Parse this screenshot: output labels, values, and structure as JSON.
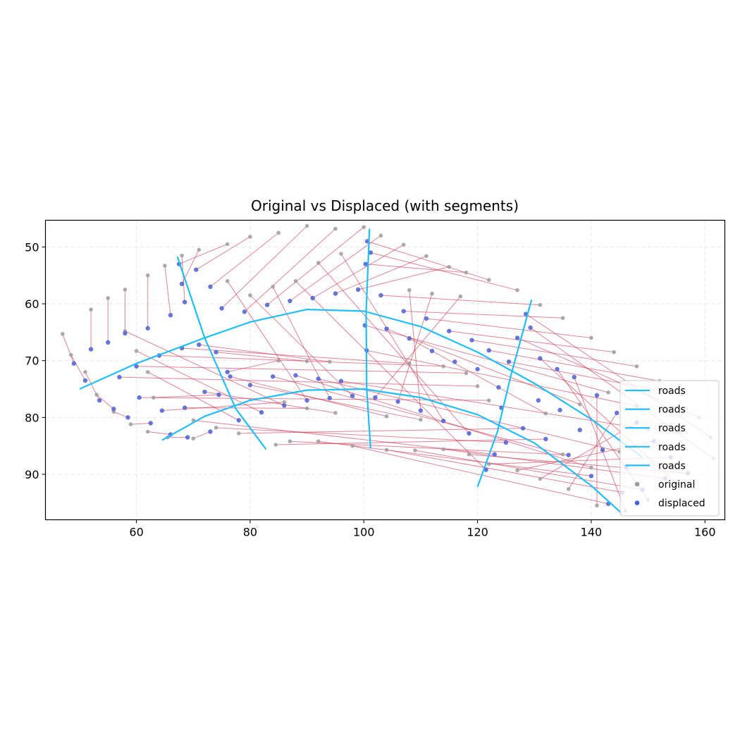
{
  "chart_data": {
    "type": "scatter",
    "title": "Original vs Displaced (with segments)",
    "xlabel": "",
    "ylabel": "",
    "xlim": [
      44,
      163.5
    ],
    "ylim": [
      98,
      45.3
    ],
    "y_axis_inverted": true,
    "x_ticks": [
      "60",
      "80",
      "100",
      "120",
      "140",
      "160"
    ],
    "y_ticks": [
      "50",
      "60",
      "70",
      "80",
      "90"
    ],
    "grid": true,
    "grid_style": "dashed",
    "legend_position": "lower right",
    "legend": [
      {
        "label": "roads",
        "kind": "line",
        "color": "#1fbfff"
      },
      {
        "label": "roads",
        "kind": "line",
        "color": "#1fbfff"
      },
      {
        "label": "roads",
        "kind": "line",
        "color": "#1fbfff"
      },
      {
        "label": "roads",
        "kind": "line",
        "color": "#1fbfff"
      },
      {
        "label": "roads",
        "kind": "line",
        "color": "#1fbfff"
      },
      {
        "label": "original",
        "kind": "marker",
        "color": "#9e9e9e"
      },
      {
        "label": "displaced",
        "kind": "marker",
        "color": "#4a5fd6"
      }
    ],
    "colors": {
      "roads": "#1fbfff",
      "original": "#9e9e9e",
      "displaced": "#4a5fd6",
      "segments": "#d6304f"
    },
    "roads": [
      {
        "points": [
          [
            50,
            75
          ],
          [
            60,
            70.5
          ],
          [
            72,
            66
          ],
          [
            80,
            63.2
          ],
          [
            90,
            61
          ],
          [
            100,
            61.3
          ],
          [
            110,
            64
          ],
          [
            120,
            68.5
          ],
          [
            130,
            74
          ],
          [
            140,
            80.3
          ],
          [
            149,
            87
          ]
        ]
      },
      {
        "points": [
          [
            64.5,
            84
          ],
          [
            72,
            79.8
          ],
          [
            80,
            77
          ],
          [
            90,
            75.2
          ],
          [
            100,
            75
          ],
          [
            110,
            76.5
          ],
          [
            120,
            79.5
          ],
          [
            130,
            84.5
          ],
          [
            140,
            92
          ],
          [
            145.5,
            97
          ]
        ]
      },
      {
        "points": [
          [
            67.2,
            51.7
          ],
          [
            72,
            66
          ],
          [
            77.5,
            78.5
          ],
          [
            82.8,
            85.6
          ]
        ]
      },
      {
        "points": [
          [
            101,
            46.8
          ],
          [
            100.4,
            61.5
          ],
          [
            100.5,
            75
          ],
          [
            101.2,
            85.5
          ]
        ]
      },
      {
        "points": [
          [
            129.5,
            59.3
          ],
          [
            125.9,
            72.5
          ],
          [
            123.5,
            82.5
          ],
          [
            120,
            92.2
          ]
        ]
      }
    ],
    "sample_points": {
      "original": [
        [
          47,
          65.3
        ],
        [
          48.5,
          69
        ],
        [
          51,
          72
        ],
        [
          53,
          76
        ],
        [
          56,
          79
        ],
        [
          59,
          81.2
        ],
        [
          62,
          82.5
        ],
        [
          65.5,
          83.5
        ],
        [
          70,
          83.7
        ],
        [
          52,
          61
        ],
        [
          55,
          59
        ],
        [
          58,
          57.5
        ],
        [
          62,
          55
        ],
        [
          65,
          53.3
        ],
        [
          68,
          51.5
        ],
        [
          71,
          50.5
        ],
        [
          76,
          49.5
        ],
        [
          80,
          48.2
        ],
        [
          85,
          47.5
        ],
        [
          90,
          46.3
        ],
        [
          95,
          46.8
        ],
        [
          100,
          46.5
        ],
        [
          103,
          48
        ],
        [
          107,
          49.6
        ],
        [
          111,
          51.6
        ],
        [
          115,
          53.5
        ],
        [
          118,
          54.5
        ],
        [
          122,
          55.8
        ],
        [
          127,
          57.6
        ],
        [
          131,
          60.2
        ],
        [
          135,
          62.5
        ],
        [
          140,
          66
        ],
        [
          144,
          68.5
        ],
        [
          148,
          71
        ],
        [
          152,
          73.6
        ],
        [
          156,
          76
        ],
        [
          159,
          80
        ],
        [
          161,
          83.5
        ],
        [
          161.5,
          87.2
        ],
        [
          155,
          91.6
        ],
        [
          150,
          94.5
        ],
        [
          146,
          96.4
        ],
        [
          141,
          95.5
        ],
        [
          136,
          92.6
        ],
        [
          131,
          90.8
        ],
        [
          127,
          89.3
        ],
        [
          122,
          88.2
        ],
        [
          118.5,
          86.5
        ],
        [
          114,
          85.6
        ],
        [
          109,
          85.8
        ],
        [
          104,
          85.7
        ],
        [
          98,
          85
        ],
        [
          92,
          84.2
        ],
        [
          87,
          84.2
        ],
        [
          84.5,
          84.8
        ],
        [
          78,
          82.8
        ],
        [
          74,
          81.8
        ],
        [
          70,
          80.5
        ],
        [
          88,
          56
        ],
        [
          92,
          52.8
        ],
        [
          96,
          51.2
        ],
        [
          108,
          57.6
        ],
        [
          112,
          58.2
        ],
        [
          117,
          58.7
        ],
        [
          80,
          58.5
        ],
        [
          84,
          57
        ],
        [
          76,
          56
        ],
        [
          58,
          64.8
        ],
        [
          60,
          68.3
        ],
        [
          62,
          72
        ],
        [
          63,
          76.5
        ],
        [
          85,
          70
        ],
        [
          90,
          70.1
        ],
        [
          94,
          70.2
        ],
        [
          108,
          70.5
        ],
        [
          114,
          71
        ],
        [
          118,
          72.2
        ],
        [
          120,
          74.5
        ],
        [
          122,
          77
        ],
        [
          86,
          77.3
        ],
        [
          90,
          78.4
        ],
        [
          95,
          79.2
        ],
        [
          104,
          79.8
        ],
        [
          110,
          80.4
        ],
        [
          135,
          86.5
        ],
        [
          140,
          88.8
        ],
        [
          145,
          86
        ],
        [
          150,
          82.1
        ],
        [
          148,
          78
        ],
        [
          143,
          75.6
        ],
        [
          138,
          77.7
        ],
        [
          132,
          79.3
        ]
      ],
      "displaced": [
        [
          49,
          70.5
        ],
        [
          51,
          73.5
        ],
        [
          53.5,
          77
        ],
        [
          56,
          78.5
        ],
        [
          58.5,
          80
        ],
        [
          62.5,
          81
        ],
        [
          66,
          83
        ],
        [
          69,
          83.5
        ],
        [
          73,
          82.5
        ],
        [
          52,
          68
        ],
        [
          55,
          66.8
        ],
        [
          58,
          65.2
        ],
        [
          62,
          64.3
        ],
        [
          66,
          62
        ],
        [
          68.5,
          59.7
        ],
        [
          68,
          56.5
        ],
        [
          67.5,
          53
        ],
        [
          70.5,
          54
        ],
        [
          73,
          57
        ],
        [
          75,
          60.8
        ],
        [
          79,
          61.4
        ],
        [
          83,
          60.2
        ],
        [
          87,
          59.5
        ],
        [
          91,
          59
        ],
        [
          95,
          58.2
        ],
        [
          99,
          57.5
        ],
        [
          100.3,
          53
        ],
        [
          100.6,
          49
        ],
        [
          101.2,
          51
        ],
        [
          103,
          58.5
        ],
        [
          107,
          61.3
        ],
        [
          111,
          62.6
        ],
        [
          115,
          64.8
        ],
        [
          119,
          66.4
        ],
        [
          122,
          68.2
        ],
        [
          125.5,
          70.2
        ],
        [
          127,
          66
        ],
        [
          128.5,
          61.8
        ],
        [
          129.3,
          64.2
        ],
        [
          131,
          69.6
        ],
        [
          134,
          71.5
        ],
        [
          137,
          72.9
        ],
        [
          141,
          76.1
        ],
        [
          144.5,
          79.2
        ],
        [
          148,
          80.9
        ],
        [
          151,
          84.2
        ],
        [
          154,
          87
        ],
        [
          157,
          89.8
        ],
        [
          153,
          90.7
        ],
        [
          149,
          92.7
        ],
        [
          145.5,
          93.2
        ],
        [
          143,
          95.2
        ],
        [
          140,
          90.3
        ],
        [
          136,
          86.6
        ],
        [
          132,
          83.8
        ],
        [
          128,
          81.9
        ],
        [
          125,
          84.4
        ],
        [
          123,
          86.5
        ],
        [
          121.5,
          89.2
        ],
        [
          118.5,
          82.8
        ],
        [
          114,
          80.6
        ],
        [
          110,
          78.8
        ],
        [
          106,
          77.2
        ],
        [
          102,
          76.5
        ],
        [
          98,
          76.2
        ],
        [
          94,
          76.6
        ],
        [
          90,
          77
        ],
        [
          86,
          77.9
        ],
        [
          82,
          79.1
        ],
        [
          78,
          80.5
        ],
        [
          74.5,
          76
        ],
        [
          76,
          72
        ],
        [
          74,
          68.5
        ],
        [
          71,
          67.2
        ],
        [
          68,
          67.8
        ],
        [
          64,
          69.1
        ],
        [
          60,
          71
        ],
        [
          57,
          72.9
        ],
        [
          60.5,
          76.5
        ],
        [
          64.5,
          78.8
        ],
        [
          68.5,
          78.3
        ],
        [
          72,
          75.5
        ],
        [
          76.5,
          72.8
        ],
        [
          80,
          74.3
        ],
        [
          84,
          72.8
        ],
        [
          88,
          72.6
        ],
        [
          92,
          73.2
        ],
        [
          96,
          73.6
        ],
        [
          100.5,
          68.2
        ],
        [
          100.2,
          63.8
        ],
        [
          104,
          64.4
        ],
        [
          108,
          66.1
        ],
        [
          112,
          68.3
        ],
        [
          116,
          70.2
        ],
        [
          120,
          71.5
        ],
        [
          123.7,
          74.7
        ],
        [
          124.2,
          78.3
        ],
        [
          130.7,
          77
        ],
        [
          134.5,
          78.7
        ],
        [
          138,
          82.2
        ],
        [
          142,
          85.7
        ],
        [
          146.2,
          88.8
        ]
      ]
    }
  }
}
